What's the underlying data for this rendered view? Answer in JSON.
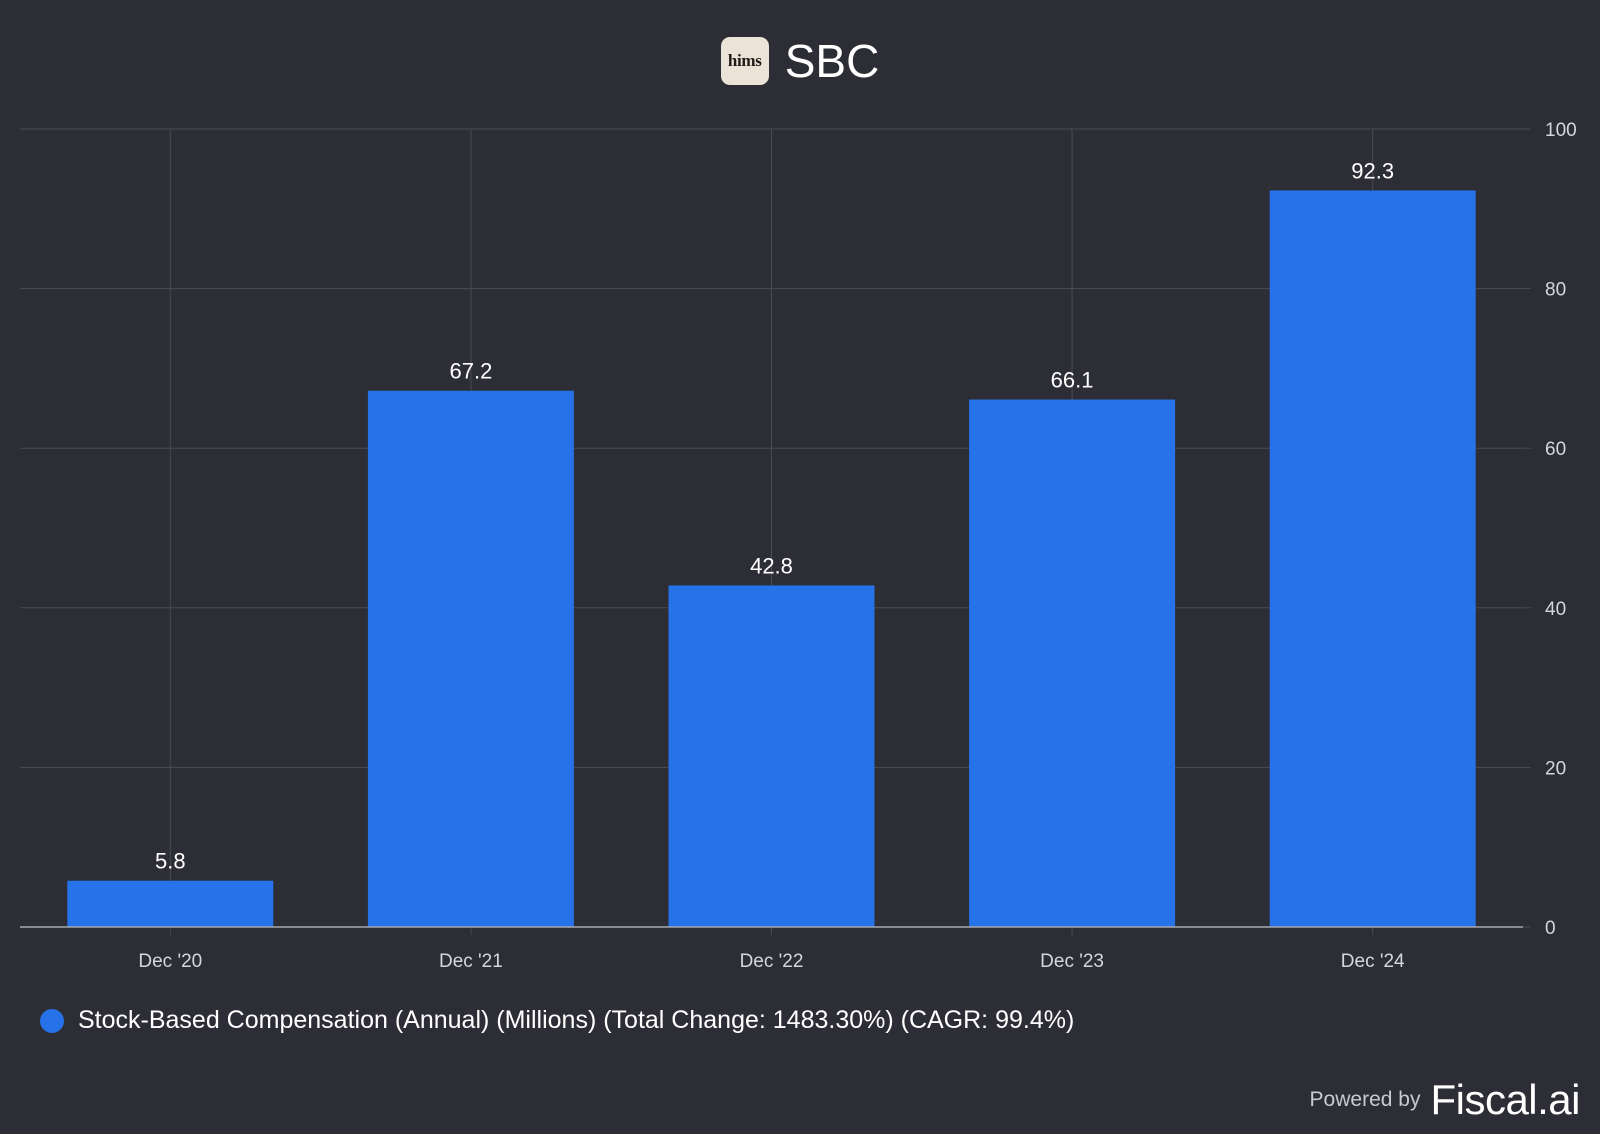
{
  "header": {
    "logo_text": "hims",
    "title": "SBC"
  },
  "chart_data": {
    "type": "bar",
    "categories": [
      "Dec '20",
      "Dec '21",
      "Dec '22",
      "Dec '23",
      "Dec '24"
    ],
    "series": [
      {
        "name": "Stock-Based Compensation (Annual) (Millions) (Total Change: 1483.30%) (CAGR: 99.4%)",
        "values": [
          5.8,
          67.2,
          42.8,
          66.1,
          92.3
        ],
        "value_labels": [
          "5.8",
          "67.2",
          "42.8",
          "66.1",
          "92.3"
        ]
      }
    ],
    "title": "SBC",
    "ylim": [
      0,
      100
    ],
    "yticks": [
      0,
      20,
      40,
      60,
      80,
      100
    ],
    "ytick_labels": [
      "0",
      "20",
      "40",
      "60",
      "80",
      "100"
    ],
    "y_axis_position": "right",
    "grid": true,
    "legend_position": "bottom-left",
    "colors": {
      "bar": "#2672e8",
      "background": "#2c2d35",
      "grid": "#4a4b54",
      "axis": "#a8a9b0",
      "tick_text": "#d6d7dc",
      "label_text": "#ffffff"
    }
  },
  "legend": {
    "label": "Stock-Based Compensation (Annual) (Millions) (Total Change: 1483.30%) (CAGR: 99.4%)"
  },
  "footer": {
    "powered_by": "Powered by",
    "brand": "Fiscal.ai"
  }
}
